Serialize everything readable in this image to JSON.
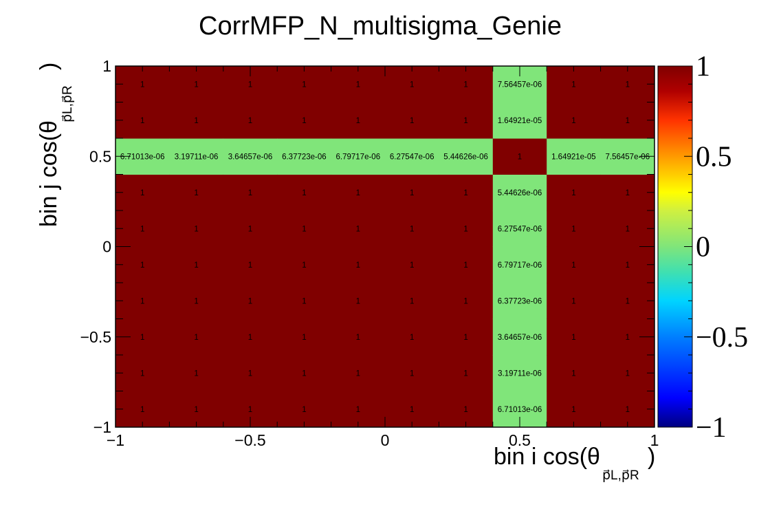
{
  "chart_data": {
    "type": "heatmap",
    "title": "CorrMFP_N_multisigma_Genie",
    "xlabel_main": "bin i cos(θ",
    "xlabel_sub": "p⃗L,p⃗R",
    "xlabel_close": ")",
    "ylabel_main": "bin j cos(θ",
    "ylabel_sub": "p⃗L,p⃗R",
    "ylabel_close": ")",
    "x_range": [
      -1,
      1
    ],
    "y_range": [
      -1,
      1
    ],
    "n_bins": 10,
    "x_tick_labels": [
      "−1",
      "−0.5",
      "0",
      "0.5",
      "1"
    ],
    "y_tick_labels": [
      "−1",
      "−0.5",
      "0",
      "0.5",
      "1"
    ],
    "x_tick_values": [
      -1,
      -0.5,
      0,
      0.5,
      1
    ],
    "y_tick_values": [
      -1,
      -0.5,
      0,
      0.5,
      1
    ],
    "z_range": [
      -1,
      1
    ],
    "z_tick_labels": [
      "−1",
      "−0.5",
      "0",
      "0.5",
      "1"
    ],
    "z_tick_values": [
      -1,
      -0.5,
      0,
      0.5,
      1
    ],
    "special_bin_index": 7,
    "default_value": 1,
    "default_label": "1",
    "off_diagonal_values": [
      6.71013e-06,
      3.19711e-06,
      3.64657e-06,
      6.37723e-06,
      6.79717e-06,
      6.27547e-06,
      5.44626e-06,
      1,
      1.64921e-05,
      7.56457e-06
    ],
    "off_diagonal_labels": [
      "6.71013e-06",
      "3.19711e-06",
      "3.64657e-06",
      "6.37723e-06",
      "6.79717e-06",
      "6.27547e-06",
      "5.44626e-06",
      "1",
      "1.64921e-05",
      "7.56457e-06"
    ],
    "colors": {
      "high": "#800000",
      "zero": "#80e57a",
      "palette": [
        "#00007f",
        "#0000ff",
        "#007fff",
        "#00d4ff",
        "#40e0b0",
        "#80e57a",
        "#d0f040",
        "#ffff00",
        "#ff9a00",
        "#ff3300",
        "#b00000",
        "#800000"
      ]
    },
    "grid": false
  }
}
